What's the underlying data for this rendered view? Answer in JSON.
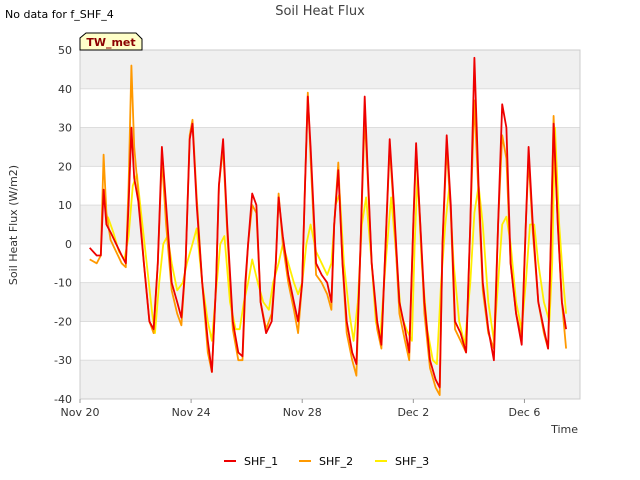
{
  "notice": "No data for f_SHF_4",
  "badge": "TW_met",
  "colors": {
    "SHF_1": "#ee0000",
    "SHF_2": "#ff9900",
    "SHF_3": "#ffee00",
    "band": "#f0f0f0",
    "grid": "#dddddd",
    "badge_bg": "#ffffc8"
  },
  "chart_data": {
    "type": "line",
    "title": "Soil Heat Flux",
    "xlabel": "Time",
    "ylabel": "Soil Heat Flux (W/m2)",
    "ylim": [
      -40,
      50
    ],
    "yticks": [
      -40,
      -30,
      -20,
      -10,
      0,
      10,
      20,
      30,
      40,
      50
    ],
    "xlim": [
      0,
      18
    ],
    "xticks": [
      {
        "value": 0,
        "label": "Nov 20"
      },
      {
        "value": 4,
        "label": "Nov 24"
      },
      {
        "value": 8,
        "label": "Nov 28"
      },
      {
        "value": 12,
        "label": "Dec 2"
      },
      {
        "value": 16,
        "label": "Dec 6"
      }
    ],
    "legend": [
      "SHF_1",
      "SHF_2",
      "SHF_3"
    ],
    "series": [
      {
        "name": "SHF_1",
        "points": [
          [
            0.35,
            -1
          ],
          [
            0.6,
            -3
          ],
          [
            0.75,
            -3
          ],
          [
            0.85,
            14
          ],
          [
            0.95,
            5
          ],
          [
            1.1,
            3
          ],
          [
            1.3,
            0
          ],
          [
            1.5,
            -3
          ],
          [
            1.65,
            -5
          ],
          [
            1.75,
            10
          ],
          [
            1.85,
            30
          ],
          [
            1.95,
            17
          ],
          [
            2.1,
            11
          ],
          [
            2.3,
            -5
          ],
          [
            2.5,
            -20
          ],
          [
            2.65,
            -22
          ],
          [
            2.8,
            -5
          ],
          [
            2.95,
            25
          ],
          [
            3.1,
            10
          ],
          [
            3.3,
            -10
          ],
          [
            3.5,
            -15
          ],
          [
            3.65,
            -19
          ],
          [
            3.8,
            -5
          ],
          [
            3.95,
            27
          ],
          [
            4.05,
            31
          ],
          [
            4.2,
            10
          ],
          [
            4.4,
            -10
          ],
          [
            4.6,
            -25
          ],
          [
            4.75,
            -33
          ],
          [
            4.9,
            -10
          ],
          [
            5.0,
            15
          ],
          [
            5.15,
            27
          ],
          [
            5.3,
            5
          ],
          [
            5.5,
            -20
          ],
          [
            5.7,
            -28
          ],
          [
            5.85,
            -29
          ],
          [
            5.95,
            -10
          ],
          [
            6.05,
            0
          ],
          [
            6.2,
            13
          ],
          [
            6.35,
            10
          ],
          [
            6.5,
            -15
          ],
          [
            6.7,
            -23
          ],
          [
            6.9,
            -20
          ],
          [
            7.05,
            -5
          ],
          [
            7.15,
            12
          ],
          [
            7.3,
            2
          ],
          [
            7.5,
            -8
          ],
          [
            7.7,
            -15
          ],
          [
            7.85,
            -20
          ],
          [
            8.0,
            -10
          ],
          [
            8.1,
            15
          ],
          [
            8.2,
            38
          ],
          [
            8.3,
            25
          ],
          [
            8.5,
            -5
          ],
          [
            8.7,
            -8
          ],
          [
            8.9,
            -10
          ],
          [
            9.05,
            -15
          ],
          [
            9.15,
            5
          ],
          [
            9.3,
            19
          ],
          [
            9.45,
            -5
          ],
          [
            9.6,
            -20
          ],
          [
            9.8,
            -28
          ],
          [
            9.95,
            -31
          ],
          [
            10.1,
            0
          ],
          [
            10.25,
            38
          ],
          [
            10.35,
            20
          ],
          [
            10.5,
            -5
          ],
          [
            10.7,
            -20
          ],
          [
            10.85,
            -26
          ],
          [
            11.0,
            0
          ],
          [
            11.15,
            27
          ],
          [
            11.3,
            10
          ],
          [
            11.5,
            -15
          ],
          [
            11.7,
            -22
          ],
          [
            11.85,
            -28
          ],
          [
            12.0,
            5
          ],
          [
            12.1,
            26
          ],
          [
            12.25,
            5
          ],
          [
            12.4,
            -15
          ],
          [
            12.6,
            -30
          ],
          [
            12.8,
            -35
          ],
          [
            12.95,
            -37
          ],
          [
            13.05,
            0
          ],
          [
            13.2,
            28
          ],
          [
            13.35,
            10
          ],
          [
            13.5,
            -20
          ],
          [
            13.7,
            -23
          ],
          [
            13.9,
            -28
          ],
          [
            14.05,
            5
          ],
          [
            14.2,
            48
          ],
          [
            14.35,
            15
          ],
          [
            14.5,
            -10
          ],
          [
            14.7,
            -22
          ],
          [
            14.9,
            -30
          ],
          [
            15.05,
            5
          ],
          [
            15.2,
            36
          ],
          [
            15.35,
            30
          ],
          [
            15.5,
            -5
          ],
          [
            15.7,
            -18
          ],
          [
            15.9,
            -26
          ],
          [
            16.05,
            5
          ],
          [
            16.15,
            25
          ],
          [
            16.3,
            5
          ],
          [
            16.5,
            -15
          ],
          [
            16.7,
            -22
          ],
          [
            16.85,
            -27
          ],
          [
            16.95,
            0
          ],
          [
            17.05,
            31
          ],
          [
            17.2,
            5
          ],
          [
            17.35,
            -15
          ],
          [
            17.5,
            -22
          ]
        ]
      },
      {
        "name": "SHF_2",
        "points": [
          [
            0.35,
            -4
          ],
          [
            0.6,
            -5
          ],
          [
            0.75,
            -3
          ],
          [
            0.85,
            23
          ],
          [
            0.95,
            8
          ],
          [
            1.1,
            1
          ],
          [
            1.3,
            -2
          ],
          [
            1.5,
            -5
          ],
          [
            1.65,
            -6
          ],
          [
            1.75,
            15
          ],
          [
            1.85,
            46
          ],
          [
            1.95,
            25
          ],
          [
            2.1,
            13
          ],
          [
            2.3,
            -5
          ],
          [
            2.5,
            -20
          ],
          [
            2.65,
            -23
          ],
          [
            2.8,
            -5
          ],
          [
            2.95,
            22
          ],
          [
            3.1,
            5
          ],
          [
            3.3,
            -12
          ],
          [
            3.5,
            -18
          ],
          [
            3.65,
            -21
          ],
          [
            3.8,
            -5
          ],
          [
            3.95,
            28
          ],
          [
            4.05,
            32
          ],
          [
            4.2,
            12
          ],
          [
            4.4,
            -10
          ],
          [
            4.6,
            -28
          ],
          [
            4.75,
            -33
          ],
          [
            4.9,
            -10
          ],
          [
            5.0,
            15
          ],
          [
            5.15,
            25
          ],
          [
            5.3,
            3
          ],
          [
            5.5,
            -22
          ],
          [
            5.7,
            -30
          ],
          [
            5.85,
            -30
          ],
          [
            5.95,
            -12
          ],
          [
            6.05,
            0
          ],
          [
            6.2,
            10
          ],
          [
            6.35,
            8
          ],
          [
            6.5,
            -15
          ],
          [
            6.7,
            -22
          ],
          [
            6.9,
            -18
          ],
          [
            7.05,
            -5
          ],
          [
            7.15,
            13
          ],
          [
            7.3,
            0
          ],
          [
            7.5,
            -10
          ],
          [
            7.7,
            -17
          ],
          [
            7.85,
            -23
          ],
          [
            8.0,
            -10
          ],
          [
            8.1,
            15
          ],
          [
            8.2,
            39
          ],
          [
            8.3,
            22
          ],
          [
            8.5,
            -8
          ],
          [
            8.7,
            -10
          ],
          [
            8.9,
            -13
          ],
          [
            9.05,
            -17
          ],
          [
            9.15,
            5
          ],
          [
            9.3,
            21
          ],
          [
            9.45,
            -5
          ],
          [
            9.6,
            -23
          ],
          [
            9.8,
            -30
          ],
          [
            9.95,
            -34
          ],
          [
            10.1,
            0
          ],
          [
            10.25,
            33
          ],
          [
            10.35,
            18
          ],
          [
            10.5,
            -5
          ],
          [
            10.7,
            -22
          ],
          [
            10.85,
            -27
          ],
          [
            11.0,
            0
          ],
          [
            11.15,
            25
          ],
          [
            11.3,
            8
          ],
          [
            11.5,
            -18
          ],
          [
            11.7,
            -25
          ],
          [
            11.85,
            -30
          ],
          [
            12.0,
            5
          ],
          [
            12.1,
            24
          ],
          [
            12.25,
            5
          ],
          [
            12.4,
            -18
          ],
          [
            12.6,
            -32
          ],
          [
            12.8,
            -37
          ],
          [
            12.95,
            -39
          ],
          [
            13.05,
            0
          ],
          [
            13.2,
            25
          ],
          [
            13.35,
            8
          ],
          [
            13.5,
            -22
          ],
          [
            13.7,
            -25
          ],
          [
            13.9,
            -28
          ],
          [
            14.05,
            5
          ],
          [
            14.2,
            37
          ],
          [
            14.35,
            12
          ],
          [
            14.5,
            -12
          ],
          [
            14.7,
            -23
          ],
          [
            14.9,
            -27
          ],
          [
            15.05,
            5
          ],
          [
            15.2,
            28
          ],
          [
            15.35,
            22
          ],
          [
            15.5,
            -5
          ],
          [
            15.7,
            -18
          ],
          [
            15.9,
            -24
          ],
          [
            16.05,
            5
          ],
          [
            16.15,
            22
          ],
          [
            16.3,
            3
          ],
          [
            16.5,
            -15
          ],
          [
            16.7,
            -23
          ],
          [
            16.85,
            -27
          ],
          [
            16.95,
            0
          ],
          [
            17.05,
            33
          ],
          [
            17.2,
            5
          ],
          [
            17.35,
            -15
          ],
          [
            17.5,
            -27
          ]
        ]
      },
      {
        "name": "SHF_3",
        "points": [
          [
            1.0,
            7
          ],
          [
            1.2,
            3
          ],
          [
            1.4,
            -2
          ],
          [
            1.6,
            -4
          ],
          [
            1.75,
            2
          ],
          [
            1.9,
            15
          ],
          [
            2.05,
            18
          ],
          [
            2.2,
            8
          ],
          [
            2.4,
            -5
          ],
          [
            2.6,
            -18
          ],
          [
            2.7,
            -23
          ],
          [
            2.85,
            -10
          ],
          [
            3.0,
            0
          ],
          [
            3.15,
            2
          ],
          [
            3.3,
            -5
          ],
          [
            3.5,
            -12
          ],
          [
            3.7,
            -10
          ],
          [
            3.85,
            -5
          ],
          [
            4.05,
            0
          ],
          [
            4.2,
            4
          ],
          [
            4.4,
            -10
          ],
          [
            4.6,
            -20
          ],
          [
            4.75,
            -25
          ],
          [
            4.9,
            -12
          ],
          [
            5.05,
            0
          ],
          [
            5.2,
            2
          ],
          [
            5.4,
            -15
          ],
          [
            5.6,
            -22
          ],
          [
            5.75,
            -22
          ],
          [
            5.9,
            -15
          ],
          [
            6.05,
            -10
          ],
          [
            6.2,
            -4
          ],
          [
            6.4,
            -10
          ],
          [
            6.6,
            -15
          ],
          [
            6.8,
            -17
          ],
          [
            6.95,
            -10
          ],
          [
            7.15,
            -5
          ],
          [
            7.3,
            0
          ],
          [
            7.5,
            -5
          ],
          [
            7.7,
            -10
          ],
          [
            7.85,
            -13
          ],
          [
            8.0,
            -10
          ],
          [
            8.15,
            0
          ],
          [
            8.3,
            5
          ],
          [
            8.5,
            -2
          ],
          [
            8.7,
            -5
          ],
          [
            8.9,
            -8
          ],
          [
            9.05,
            -5
          ],
          [
            9.2,
            10
          ],
          [
            9.35,
            13
          ],
          [
            9.5,
            -5
          ],
          [
            9.7,
            -18
          ],
          [
            9.85,
            -25
          ],
          [
            10.0,
            -15
          ],
          [
            10.15,
            5
          ],
          [
            10.3,
            12
          ],
          [
            10.5,
            -5
          ],
          [
            10.65,
            -20
          ],
          [
            10.8,
            -25
          ],
          [
            11.0,
            -5
          ],
          [
            11.2,
            12
          ],
          [
            11.35,
            0
          ],
          [
            11.55,
            -18
          ],
          [
            11.75,
            -22
          ],
          [
            11.95,
            -25
          ],
          [
            12.05,
            0
          ],
          [
            12.15,
            18
          ],
          [
            12.3,
            -5
          ],
          [
            12.5,
            -22
          ],
          [
            12.7,
            -30
          ],
          [
            12.85,
            -31
          ],
          [
            13.0,
            -10
          ],
          [
            13.15,
            5
          ],
          [
            13.3,
            15
          ],
          [
            13.45,
            -5
          ],
          [
            13.65,
            -20
          ],
          [
            13.85,
            -26
          ],
          [
            14.05,
            -10
          ],
          [
            14.2,
            8
          ],
          [
            14.35,
            15
          ],
          [
            14.5,
            5
          ],
          [
            14.7,
            -15
          ],
          [
            14.9,
            -25
          ],
          [
            15.05,
            -10
          ],
          [
            15.2,
            5
          ],
          [
            15.35,
            7
          ],
          [
            15.5,
            0
          ],
          [
            15.7,
            -15
          ],
          [
            15.9,
            -22
          ],
          [
            16.05,
            -10
          ],
          [
            16.2,
            5
          ],
          [
            16.35,
            5
          ],
          [
            16.5,
            -5
          ],
          [
            16.7,
            -15
          ],
          [
            16.9,
            -20
          ],
          [
            17.0,
            -5
          ],
          [
            17.1,
            30
          ],
          [
            17.25,
            5
          ],
          [
            17.4,
            -10
          ],
          [
            17.5,
            -18
          ]
        ]
      }
    ]
  }
}
